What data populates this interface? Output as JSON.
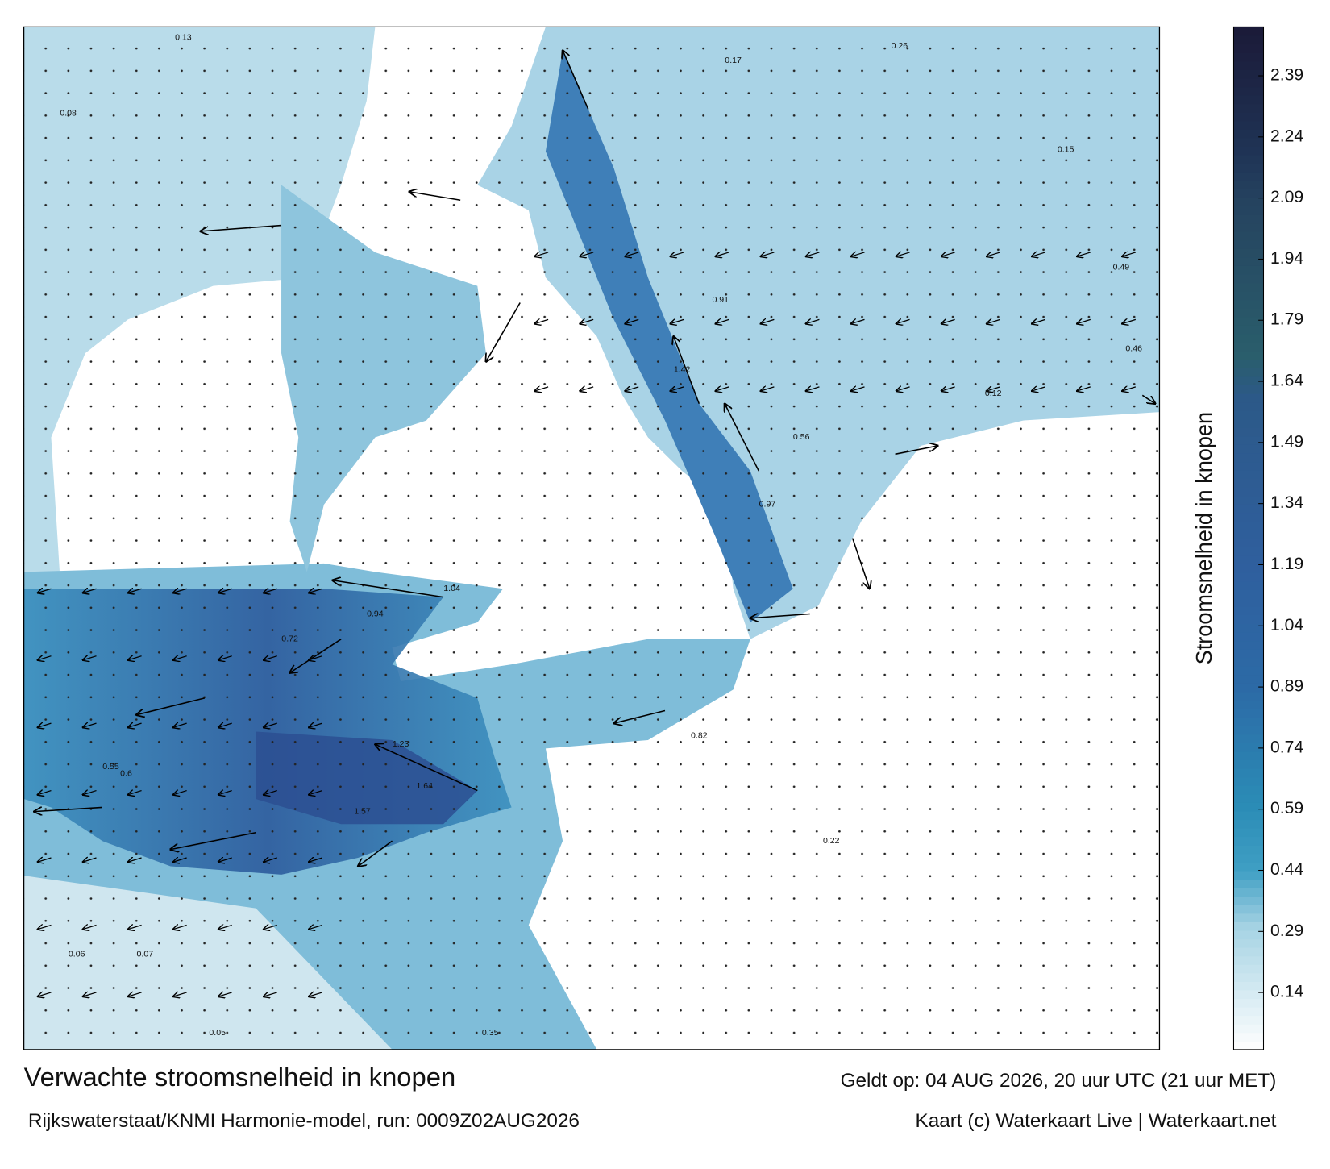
{
  "title": "Verwachte stroomsnelheid in knopen",
  "subtitle": "Rijkswaterstaat/KNMI Harmonie-model, run: 0009Z02AUG2026",
  "valid_time": "Geldt op: 04 AUG 2026, 20 uur UTC (21 uur MET)",
  "credit": "Kaart (c) Waterkaart Live | Waterkaart.net",
  "colorbar": {
    "label": "Stroomsnelheid in knopen",
    "lim": [
      0,
      2.51
    ],
    "ticks": [
      0.14,
      0.29,
      0.44,
      0.59,
      0.74,
      0.89,
      1.04,
      1.19,
      1.34,
      1.49,
      1.64,
      1.79,
      1.94,
      2.09,
      2.24,
      2.39
    ],
    "colorscale": [
      [
        0,
        "#ffffff"
      ],
      [
        0.3,
        "#a6d3e4"
      ],
      [
        0.44,
        "#3f9fc4"
      ],
      [
        0.6,
        "#2b8cb6"
      ],
      [
        0.89,
        "#2c6aa6"
      ],
      [
        1.19,
        "#2f5f9e"
      ],
      [
        1.6,
        "#2c5988"
      ],
      [
        1.7,
        "#2a5e6c"
      ],
      [
        2.09,
        "#25425f"
      ],
      [
        2.2,
        "#1f3456"
      ],
      [
        2.51,
        "#1b1a38"
      ]
    ]
  },
  "current_labels": [
    0.13,
    0.26,
    0.91,
    1.42,
    0.56,
    0.97,
    1.04,
    0.94,
    1.23,
    1.64,
    1.57,
    0.82,
    0.55,
    0.35,
    0.05,
    0.06,
    0.07,
    0.12,
    0.46,
    0.22,
    0.08,
    0.15,
    0.17,
    0.6,
    0.72,
    0.49
  ]
}
